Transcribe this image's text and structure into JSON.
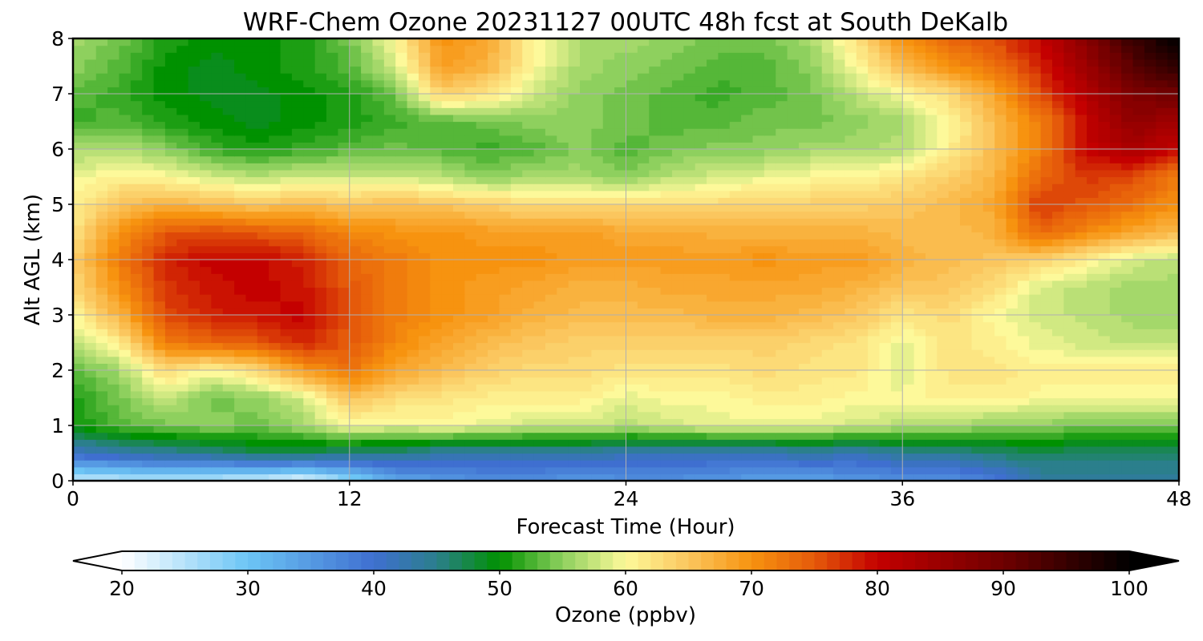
{
  "chart_data": {
    "type": "heatmap",
    "title": "WRF-Chem Ozone  20231127 00UTC 48h fcst at South DeKalb",
    "xlabel": "Forecast Time (Hour)",
    "ylabel": "Alt AGL (km)",
    "xlim": [
      0,
      48
    ],
    "ylim": [
      0,
      8
    ],
    "xticks": [
      0,
      12,
      24,
      36,
      48
    ],
    "yticks": [
      0,
      1,
      2,
      3,
      4,
      5,
      6,
      7,
      8
    ],
    "grid": true,
    "x": [
      0,
      2,
      4,
      6,
      8,
      10,
      12,
      14,
      16,
      18,
      20,
      22,
      24,
      26,
      28,
      30,
      32,
      34,
      36,
      38,
      40,
      42,
      44,
      46,
      48
    ],
    "y": [
      0,
      0.5,
      1,
      1.5,
      2,
      2.5,
      3,
      3.5,
      4,
      4.5,
      5,
      5.5,
      6,
      6.5,
      7,
      7.5,
      8
    ],
    "z": [
      [
        24,
        24,
        25,
        24,
        23,
        21,
        27,
        33,
        35,
        36,
        36,
        35,
        36,
        36,
        35,
        34,
        34,
        35,
        36,
        36,
        38,
        43,
        44,
        44,
        44
      ],
      [
        41,
        43,
        44,
        45,
        47,
        47,
        45,
        45,
        43,
        43,
        43,
        43,
        42,
        42,
        42,
        42,
        43,
        42,
        44,
        44,
        46,
        47,
        46,
        46,
        46
      ],
      [
        50,
        53,
        54,
        55,
        54,
        56,
        60,
        59,
        60,
        59,
        58,
        58,
        57,
        58,
        59,
        59,
        59,
        58,
        57,
        57,
        55,
        55,
        54,
        54,
        54
      ],
      [
        51,
        54,
        58,
        54,
        55,
        58,
        65,
        63,
        62,
        61,
        61,
        61,
        59,
        60,
        60,
        61,
        61,
        60,
        60,
        61,
        61,
        60,
        60,
        60,
        60
      ],
      [
        53,
        56,
        63,
        60,
        63,
        69,
        73,
        68,
        66,
        64,
        63,
        63,
        62,
        62,
        62,
        63,
        62,
        62,
        58,
        62,
        62,
        61,
        61,
        61,
        61
      ],
      [
        57,
        61,
        72,
        74,
        75,
        78,
        75,
        71,
        68,
        66,
        65,
        64,
        64,
        64,
        64,
        64,
        63,
        62,
        59,
        62,
        61,
        59,
        58,
        57,
        57
      ],
      [
        60,
        67,
        76,
        78,
        79,
        80,
        75,
        72,
        70,
        69,
        67,
        66,
        66,
        66,
        67,
        67,
        66,
        65,
        62,
        63,
        60,
        58,
        57,
        56,
        56
      ],
      [
        63,
        70,
        77,
        79,
        80,
        79,
        75,
        72,
        70,
        69,
        68,
        67,
        67,
        68,
        68,
        68,
        68,
        67,
        65,
        65,
        63,
        58,
        57,
        56,
        56
      ],
      [
        64,
        72,
        78,
        80,
        80,
        78,
        74,
        72,
        70,
        70,
        70,
        69,
        69,
        69,
        69,
        70,
        69,
        69,
        67,
        66,
        65,
        64,
        61,
        58,
        57
      ],
      [
        62,
        70,
        75,
        76,
        75,
        74,
        71,
        70,
        70,
        69,
        69,
        69,
        68,
        68,
        67,
        67,
        67,
        67,
        66,
        66,
        67,
        74,
        71,
        68,
        66
      ],
      [
        61,
        65,
        67,
        66,
        65,
        66,
        65,
        66,
        65,
        64,
        63,
        63,
        63,
        63,
        63,
        64,
        64,
        64,
        65,
        66,
        68,
        77,
        75,
        73,
        70
      ],
      [
        59,
        61,
        60,
        58,
        57,
        58,
        58,
        58,
        57,
        55,
        56,
        56,
        55,
        57,
        58,
        59,
        60,
        60,
        62,
        64,
        67,
        74,
        77,
        76,
        72
      ],
      [
        56,
        57,
        55,
        52,
        51,
        52,
        53,
        54,
        53,
        52,
        53,
        55,
        53,
        54,
        55,
        55,
        56,
        56,
        57,
        61,
        66,
        72,
        80,
        83,
        80
      ],
      [
        52,
        53,
        51,
        50,
        49,
        50,
        51,
        52,
        53,
        54,
        55,
        55,
        54,
        53,
        53,
        54,
        54,
        55,
        56,
        60,
        66,
        72,
        80,
        86,
        84
      ],
      [
        53,
        52,
        50,
        49,
        49,
        50,
        51,
        54,
        64,
        62,
        58,
        55,
        54,
        53,
        52,
        53,
        54,
        57,
        60,
        63,
        68,
        76,
        82,
        88,
        90
      ],
      [
        55,
        53,
        50,
        49,
        50,
        51,
        53,
        58,
        69,
        67,
        60,
        56,
        55,
        54,
        53,
        53,
        55,
        60,
        66,
        70,
        73,
        78,
        85,
        92,
        96
      ],
      [
        56,
        54,
        51,
        50,
        50,
        51,
        54,
        60,
        70,
        68,
        60,
        56,
        56,
        55,
        54,
        54,
        56,
        62,
        70,
        74,
        76,
        80,
        87,
        95,
        100
      ]
    ],
    "colorbar": {
      "label": "Ozone  (ppbv)",
      "min": 20,
      "max": 100,
      "ticks": [
        20,
        30,
        40,
        50,
        60,
        70,
        80,
        90,
        100
      ],
      "extend": "both",
      "colors": [
        {
          "v": 20,
          "c": "#ffffff"
        },
        {
          "v": 30,
          "c": "#6cc5f5"
        },
        {
          "v": 40,
          "c": "#3f6fd0"
        },
        {
          "v": 45,
          "c": "#2b7f8c"
        },
        {
          "v": 50,
          "c": "#009100"
        },
        {
          "v": 55,
          "c": "#8ed05e"
        },
        {
          "v": 60,
          "c": "#fdf99a"
        },
        {
          "v": 65,
          "c": "#fbc65e"
        },
        {
          "v": 70,
          "c": "#f7930f"
        },
        {
          "v": 75,
          "c": "#e55a0a"
        },
        {
          "v": 80,
          "c": "#c40000"
        },
        {
          "v": 90,
          "c": "#6e0000"
        },
        {
          "v": 100,
          "c": "#000000"
        }
      ]
    }
  }
}
